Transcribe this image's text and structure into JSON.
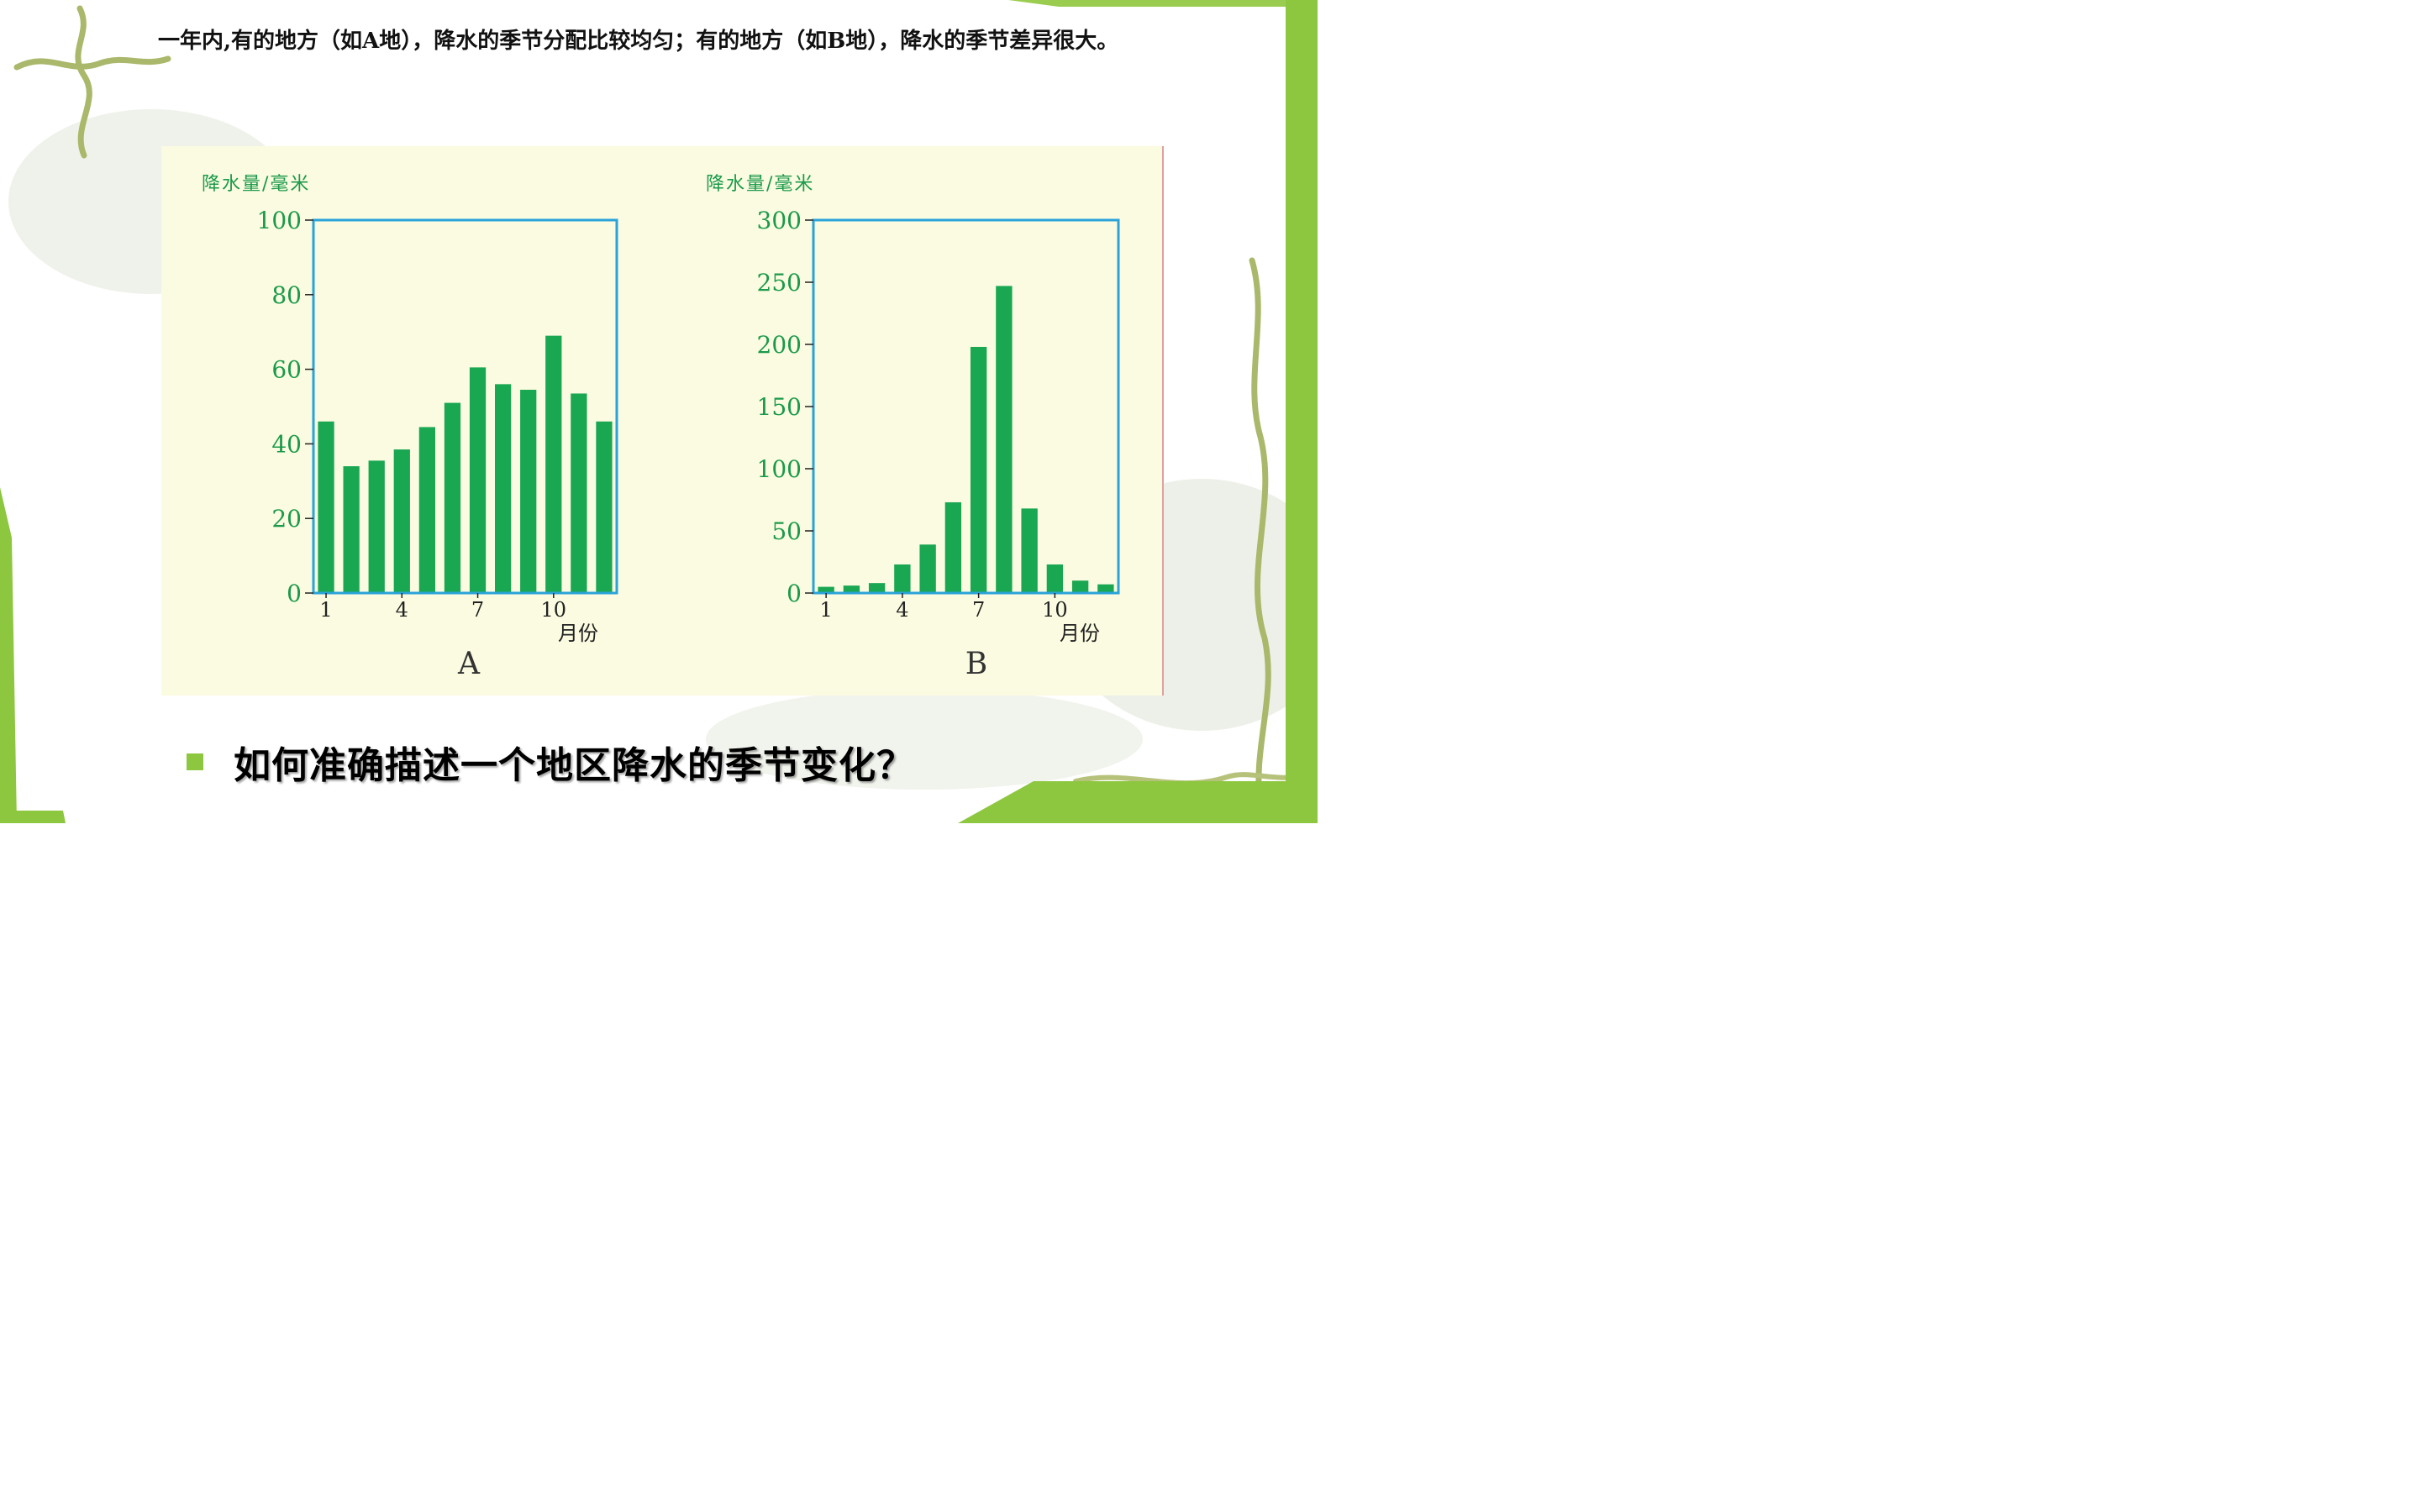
{
  "intro_text": "一年内,有的地方（如A地），降水的季节分配比较均匀；有的地方（如B地），降水的季节差异很大。",
  "question": "如何准确描述一个地区降水的季节变化？",
  "colors": {
    "bar": "#19a752",
    "axis": "#2aa3d9",
    "label": "#1a9a4a",
    "panel": "#fbfbe1",
    "slide_accent": "#8dc63f"
  },
  "icons": [
    "bullet-square-icon"
  ],
  "chart_data": [
    {
      "type": "bar",
      "title": "A",
      "ylabel": "降水量/毫米",
      "xlabel": "月份",
      "categories": [
        1,
        2,
        3,
        4,
        5,
        6,
        7,
        8,
        9,
        10,
        11,
        12
      ],
      "xticks": [
        1,
        4,
        7,
        10
      ],
      "values": [
        46,
        34,
        35.5,
        38.5,
        44.5,
        51,
        60.5,
        56,
        54.5,
        69,
        53.5,
        46
      ],
      "ylim": [
        0,
        100
      ],
      "yticks": [
        0,
        20,
        40,
        60,
        80,
        100
      ],
      "grid": false
    },
    {
      "type": "bar",
      "title": "B",
      "ylabel": "降水量/毫米",
      "xlabel": "月份",
      "categories": [
        1,
        2,
        3,
        4,
        5,
        6,
        7,
        8,
        9,
        10,
        11,
        12
      ],
      "xticks": [
        1,
        4,
        7,
        10
      ],
      "values": [
        5,
        6,
        8,
        23,
        39,
        73,
        198,
        247,
        68,
        23,
        10,
        7
      ],
      "ylim": [
        0,
        300
      ],
      "yticks": [
        0,
        50,
        100,
        150,
        200,
        250,
        300
      ],
      "grid": false
    }
  ]
}
